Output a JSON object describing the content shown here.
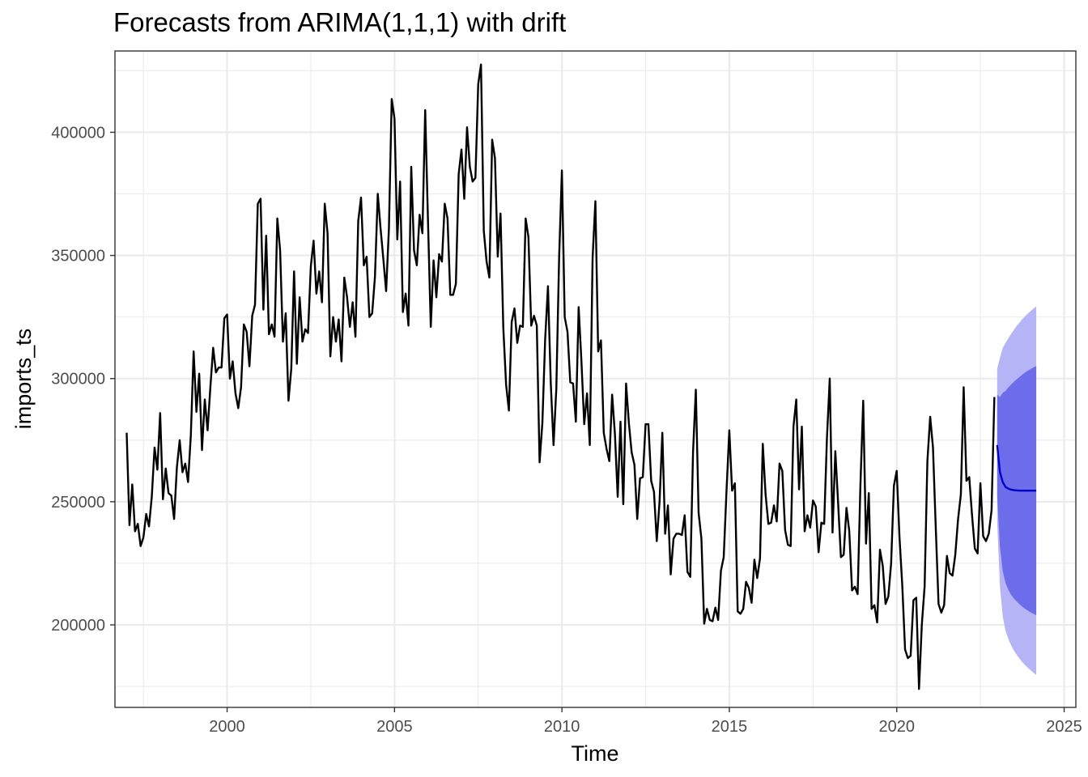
{
  "chart_data": {
    "type": "line",
    "title": "Forecasts from ARIMA(1,1,1) with drift",
    "xlabel": "Time",
    "ylabel": "imports_ts",
    "xlim": [
      1996.65,
      2025.35
    ],
    "ylim": [
      166500,
      433000
    ],
    "x_ticks": [
      2000,
      2005,
      2010,
      2015,
      2020,
      2025
    ],
    "y_ticks": [
      200000,
      250000,
      300000,
      350000,
      400000
    ],
    "x_tick_labels": [
      "2000",
      "2005",
      "2010",
      "2015",
      "2020",
      "2025"
    ],
    "y_tick_labels": [
      "200000",
      "250000",
      "300000",
      "350000",
      "400000"
    ],
    "grid": true,
    "series": [
      {
        "color": "#000000",
        "start": 1997.0,
        "step": 0.08333,
        "values": [
          278000,
          240500,
          257000,
          238000,
          241000,
          232000,
          235500,
          245000,
          240000,
          252000,
          272000,
          263000,
          286000,
          251000,
          263500,
          253500,
          252500,
          243000,
          264000,
          275000,
          262000,
          265500,
          258000,
          277000,
          311000,
          286500,
          302000,
          271000,
          291500,
          279000,
          296500,
          312500,
          302500,
          304500,
          304500,
          324500,
          326000,
          300000,
          307000,
          294000,
          288000,
          296500,
          322000,
          319000,
          305000,
          325500,
          330000,
          371000,
          373000,
          328000,
          358000,
          318000,
          322000,
          317000,
          365000,
          352000,
          315000,
          326500,
          291000,
          304000,
          343500,
          306000,
          333000,
          315000,
          320000,
          318500,
          345500,
          356000,
          334500,
          343500,
          331000,
          371000,
          359000,
          309000,
          325000,
          315000,
          324000,
          307000,
          341000,
          333000,
          321000,
          331000,
          317000,
          364000,
          373500,
          346000,
          349500,
          325000,
          326500,
          341500,
          375000,
          361000,
          348500,
          335500,
          361000,
          413500,
          405500,
          356500,
          380000,
          327000,
          334500,
          321500,
          386000,
          352000,
          346000,
          366500,
          359000,
          409000,
          364000,
          321000,
          348000,
          333000,
          350500,
          347500,
          371000,
          365000,
          334000,
          334000,
          338500,
          383000,
          393000,
          373000,
          402000,
          386000,
          380000,
          381500,
          419500,
          427500,
          360000,
          347500,
          341000,
          397000,
          389500,
          349500,
          367000,
          320500,
          297500,
          287000,
          323000,
          328500,
          314500,
          321500,
          321000,
          365000,
          357500,
          321500,
          325500,
          321500,
          266000,
          282000,
          316000,
          337500,
          298500,
          273000,
          296000,
          349000,
          384500,
          325000,
          319000,
          298500,
          298000,
          282500,
          329000,
          307000,
          281500,
          294000,
          273000,
          349000,
          372000,
          311000,
          315500,
          278000,
          271500,
          266500,
          293500,
          277500,
          252000,
          282500,
          249000,
          298000,
          282000,
          270000,
          265000,
          243000,
          259500,
          260000,
          281500,
          281500,
          258500,
          254000,
          234000,
          250000,
          278000,
          237000,
          248500,
          220500,
          235000,
          237000,
          237000,
          236500,
          244500,
          221500,
          219500,
          270000,
          295500,
          245500,
          235000,
          200500,
          206500,
          202000,
          201500,
          207000,
          202000,
          222000,
          227500,
          254500,
          279000,
          254500,
          257500,
          205500,
          204500,
          206500,
          217500,
          215000,
          209000,
          226500,
          219000,
          227000,
          273500,
          253000,
          241000,
          241500,
          248500,
          242000,
          265500,
          262500,
          238500,
          232500,
          232000,
          280500,
          291500,
          255000,
          280500,
          238000,
          244500,
          239500,
          250500,
          248000,
          229500,
          241500,
          241000,
          276000,
          300000,
          237500,
          270500,
          249500,
          227500,
          228500,
          247500,
          238000,
          214000,
          215500,
          212500,
          257000,
          291000,
          233000,
          253500,
          206500,
          208000,
          201000,
          230500,
          224000,
          208500,
          211500,
          225000,
          256500,
          262500,
          235500,
          216000,
          190000,
          186500,
          187500,
          210000,
          211000,
          174000,
          200000,
          215500,
          266500,
          284500,
          272000,
          239500,
          208500,
          205000,
          208000,
          228000,
          221000,
          220000,
          228500,
          243000,
          253000,
          296500,
          258500,
          260000,
          244500,
          231000,
          229000,
          257500,
          236000,
          234000,
          237000,
          246500,
          292500
        ]
      },
      {
        "color": "#0000cc",
        "start": 2023.0,
        "step": 0.08333,
        "values": [
          273000,
          262000,
          258000,
          256000,
          255300,
          254900,
          254700,
          254600,
          254500,
          254500,
          254500,
          254500,
          254500,
          254500,
          254500
        ]
      }
    ],
    "forecast_intervals": {
      "start": 2023.0,
      "step": 0.08333,
      "colors": {
        "ci95": "#b4b4f6",
        "ci80": "#6d6deb"
      },
      "lo95": [
        242000,
        215500,
        203500,
        197500,
        194300,
        191700,
        189600,
        187800,
        186300,
        184900,
        183700,
        182600,
        181600,
        180600,
        179700
      ],
      "hi95": [
        304000,
        308500,
        312500,
        314500,
        316300,
        318100,
        319800,
        321400,
        322700,
        324100,
        325300,
        326400,
        327400,
        328400,
        329300
      ],
      "lo80": [
        252500,
        231500,
        221800,
        217000,
        214200,
        212200,
        210700,
        209500,
        208400,
        207400,
        206500,
        205800,
        205100,
        204500,
        203900
      ],
      "hi80": [
        293500,
        292500,
        294200,
        295000,
        296400,
        297600,
        298700,
        299700,
        300600,
        301600,
        302500,
        303200,
        303900,
        304500,
        305100
      ]
    }
  }
}
